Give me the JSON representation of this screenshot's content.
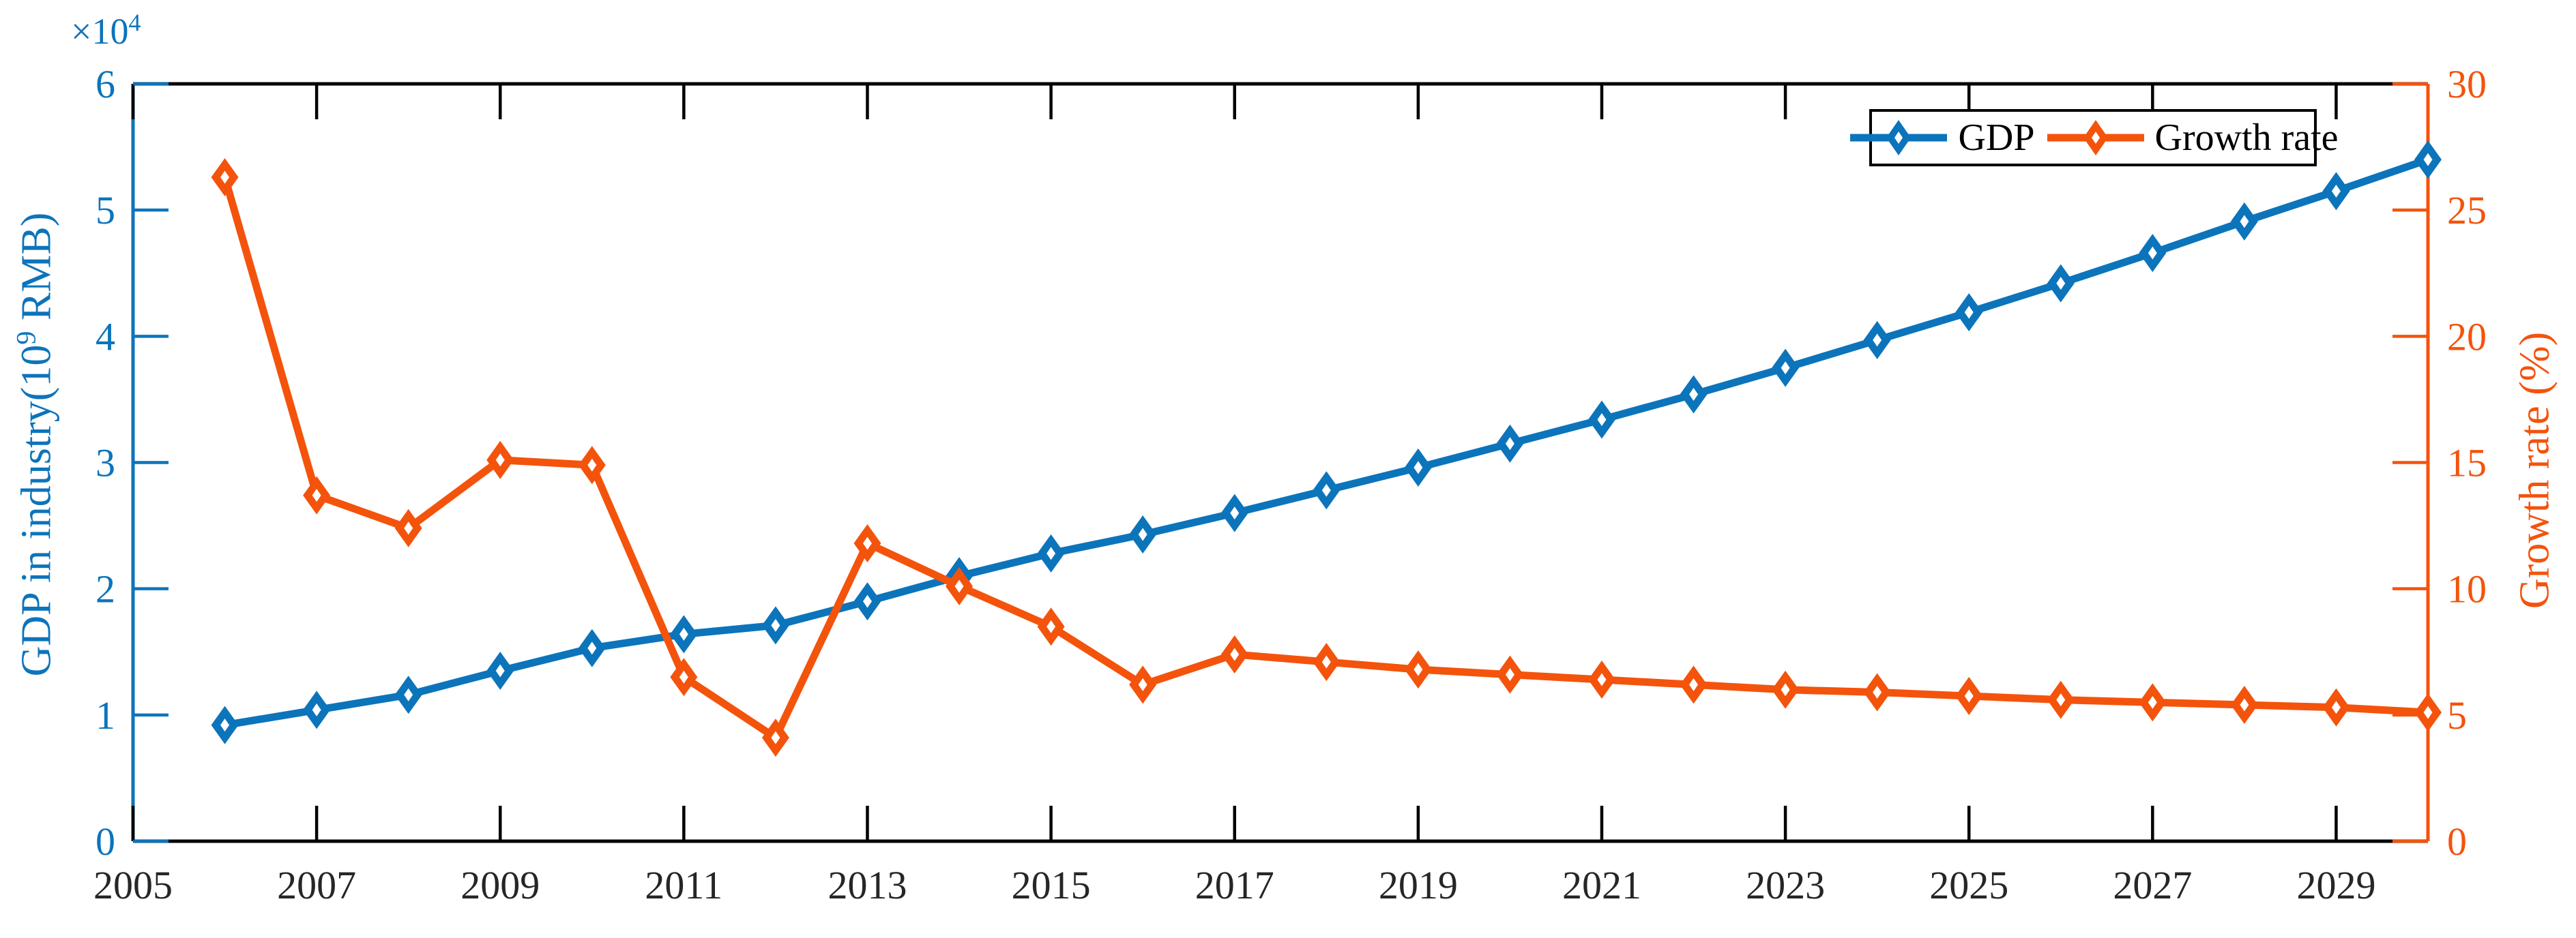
{
  "figure": {
    "exponent_prefix": "×10",
    "exponent_sup": "4",
    "left_axis_title": {
      "prefix": "GDP in industry(10",
      "sup": "9",
      "suffix": " RMB)"
    },
    "right_axis_title": "Growth rate (%)",
    "legend": {
      "gdp_label": "GDP",
      "growth_label": "Growth rate"
    },
    "colors": {
      "gdp_blue": "#0C74BB",
      "growth_orange": "#F4530C",
      "axis_black": "#000000",
      "tick_text_black": "#262626",
      "background": "#ffffff"
    }
  },
  "chart_data": {
    "type": "line",
    "title": "",
    "xlabel": "",
    "left_ylabel": "GDP in industry(10^9 RMB)",
    "right_ylabel": "Growth rate (%)",
    "x_range": [
      2005,
      2030
    ],
    "left_ylim": [
      0,
      60000
    ],
    "right_ylim": [
      0,
      30
    ],
    "x_tick_labels": [
      2005,
      2007,
      2009,
      2011,
      2013,
      2015,
      2017,
      2019,
      2021,
      2023,
      2025,
      2027,
      2029
    ],
    "left_tick_values": [
      0,
      1,
      2,
      3,
      4,
      5,
      6
    ],
    "left_tick_unit": 10000,
    "right_tick_values": [
      0,
      5,
      10,
      15,
      20,
      25,
      30
    ],
    "grid": false,
    "legend_position": "top-right-inside",
    "years": [
      2006,
      2007,
      2008,
      2009,
      2010,
      2011,
      2012,
      2013,
      2014,
      2015,
      2016,
      2017,
      2018,
      2019,
      2020,
      2021,
      2022,
      2023,
      2024,
      2025,
      2026,
      2027,
      2028,
      2029,
      2030
    ],
    "series": [
      {
        "name": "GDP",
        "axis": "left",
        "unit": "10^9 RMB",
        "marker": "diamond",
        "values": [
          9200,
          10400,
          11600,
          13500,
          15300,
          16400,
          17100,
          19000,
          21000,
          22800,
          24300,
          26000,
          27800,
          29600,
          31500,
          33400,
          35400,
          37500,
          39700,
          41900,
          44200,
          46600,
          49100,
          51500,
          54000
        ]
      },
      {
        "name": "Growth rate",
        "axis": "right",
        "unit": "%",
        "marker": "diamond",
        "values": [
          26.3,
          13.7,
          12.4,
          15.1,
          14.9,
          6.5,
          4.1,
          11.8,
          10.1,
          8.5,
          6.2,
          7.4,
          7.1,
          6.8,
          6.6,
          6.4,
          6.2,
          6.0,
          5.9,
          5.75,
          5.6,
          5.5,
          5.4,
          5.3,
          5.1
        ]
      }
    ]
  }
}
